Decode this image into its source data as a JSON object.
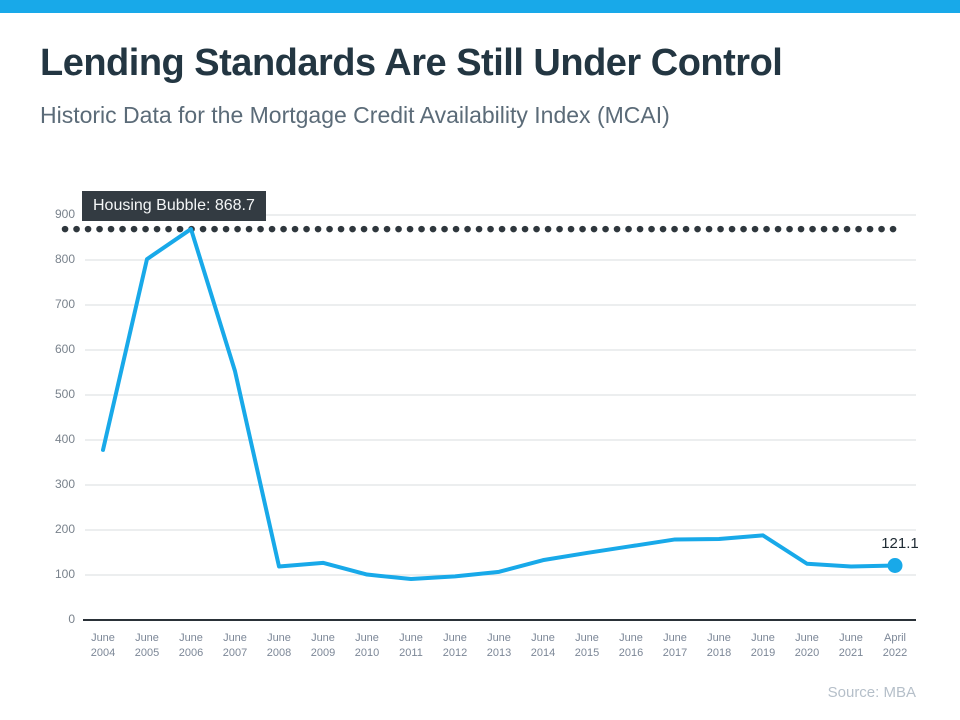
{
  "page": {
    "title": "Lending Standards Are Still Under Control",
    "subtitle": "Historic Data for the Mortgage Credit Availability Index (MCAI)",
    "source": "Source: MBA",
    "accent_color": "#18a9e9"
  },
  "chart_data": {
    "type": "line",
    "title": "Historic Data for the Mortgage Credit Availability Index (MCAI)",
    "series_name": "MCAI",
    "categories": [
      "June 2004",
      "June 2005",
      "June 2006",
      "June 2007",
      "June 2008",
      "June 2009",
      "June 2010",
      "June 2011",
      "June 2012",
      "June 2013",
      "June 2014",
      "June 2015",
      "June 2016",
      "June 2017",
      "June 2018",
      "June 2019",
      "June 2020",
      "June 2021",
      "April 2022"
    ],
    "values": [
      378,
      802,
      868.7,
      553,
      119,
      127,
      101,
      91,
      97,
      107,
      133,
      149,
      164,
      179,
      180,
      188,
      125,
      119,
      121.1
    ],
    "y_ticks": [
      0,
      100,
      200,
      300,
      400,
      500,
      600,
      700,
      800,
      900
    ],
    "ylim": [
      0,
      915
    ],
    "grid": true,
    "legend": false,
    "line_color": "#18a9e9",
    "grid_color": "#d8dcdf",
    "axis_color": "#2a3138",
    "dotted_line_color": "#2f373d",
    "annotation": {
      "label": "Housing Bubble: 868.7",
      "value": 868.7
    },
    "end_label": "121.1",
    "end_value": 121.1
  }
}
